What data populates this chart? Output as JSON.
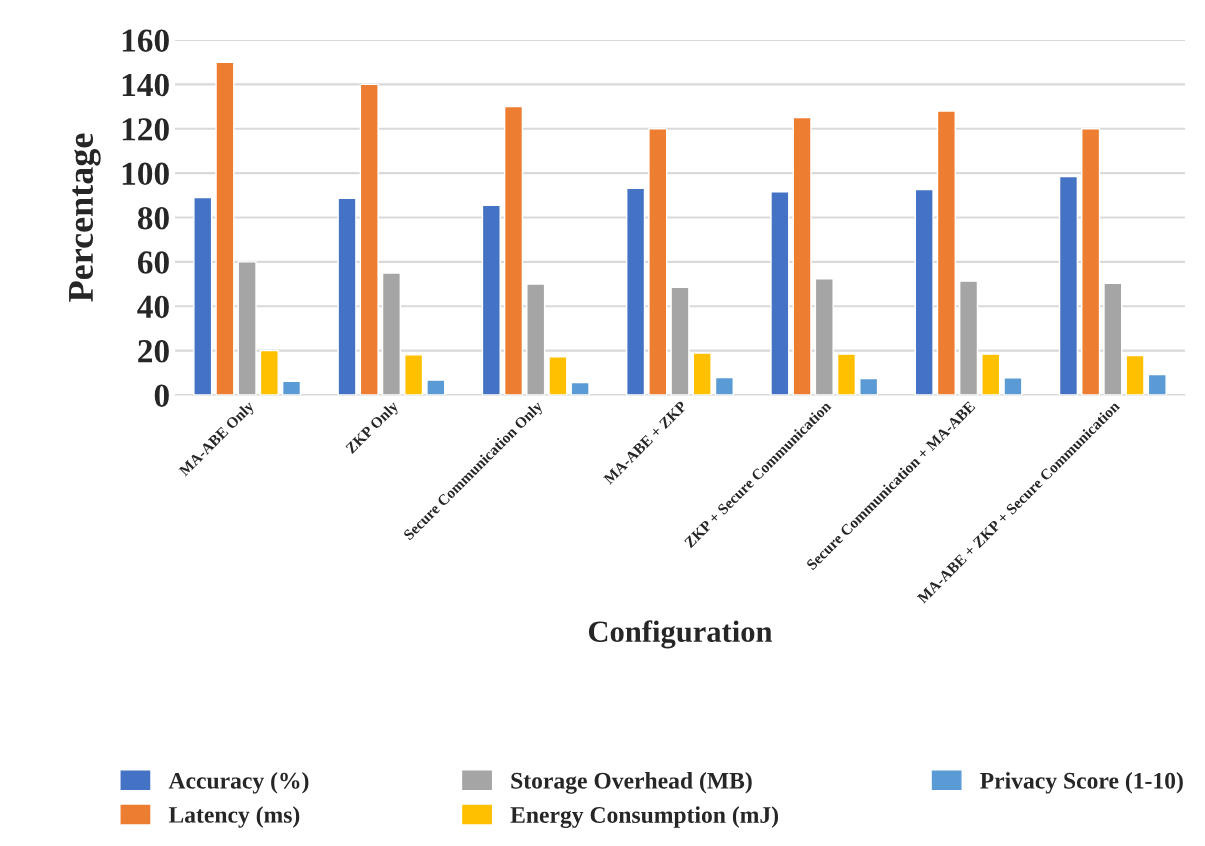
{
  "chart_data": {
    "type": "bar",
    "xlabel": "Configuration",
    "ylabel": "Percentage",
    "categories": [
      "MA-ABE Only",
      "ZKP Only",
      "Secure Communication Only",
      "MA-ABE + ZKP",
      "ZKP + Secure Communication",
      "Secure Communication + MA-ABE",
      "MA-ABE + ZKP + Secure Communication"
    ],
    "series": [
      {
        "name": "Accuracy (%)",
        "color": "#4472c4",
        "values": [
          89,
          88.6,
          85.5,
          93.2,
          91.6,
          92.6,
          98.4
        ]
      },
      {
        "name": "Latency (ms)",
        "color": "#ed7d31",
        "values": [
          150,
          140,
          130,
          120,
          125,
          128,
          120
        ]
      },
      {
        "name": "Storage Overhead (MB)",
        "color": "#a5a5a5",
        "values": [
          60,
          55,
          50,
          48.5,
          52.4,
          51.3,
          50.3
        ]
      },
      {
        "name": "Energy Consumption (mJ)",
        "color": "#ffc000",
        "values": [
          20,
          18.1,
          17.2,
          18.9,
          18.4,
          18.4,
          17.8
        ]
      },
      {
        "name": "Privacy Score (1-10)",
        "color": "#5b9bd5",
        "values": [
          6.2,
          6.7,
          5.6,
          7.9,
          7.4,
          7.8,
          9.2
        ]
      }
    ],
    "ylim": [
      0,
      160
    ],
    "yticks": [
      0,
      20,
      40,
      60,
      80,
      100,
      120,
      140,
      160
    ],
    "grid": "y",
    "legend": "bottom"
  }
}
